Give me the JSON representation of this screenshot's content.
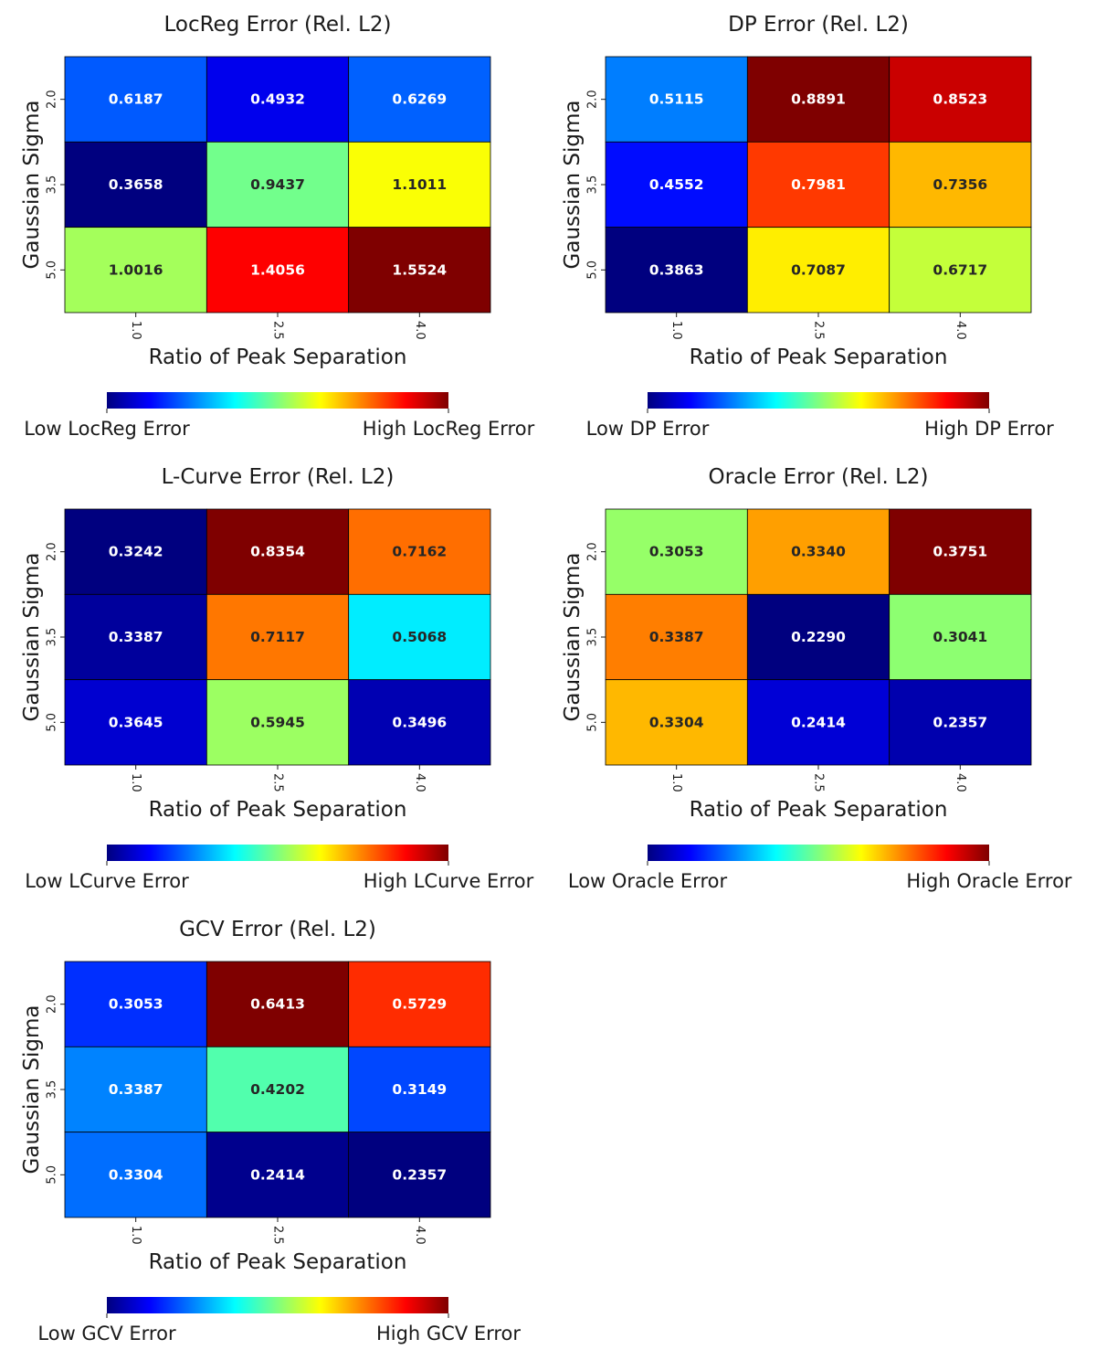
{
  "colormap": [
    "#00007f",
    "#0000ff",
    "#007fff",
    "#00ffff",
    "#7fff7f",
    "#ffff00",
    "#ff7f00",
    "#ff0000",
    "#7f0000"
  ],
  "chart_data": [
    {
      "type": "heatmap",
      "title": "LocReg Error (Rel. L2)",
      "xlabel": "Ratio of Peak Separation",
      "ylabel": "Gaussian Sigma",
      "x_categories": [
        "1.0",
        "2.5",
        "4.0"
      ],
      "y_categories": [
        "2.0",
        "3.5",
        "5.0"
      ],
      "values": [
        [
          0.6187,
          0.4932,
          0.6269
        ],
        [
          0.3658,
          0.9437,
          1.1011
        ],
        [
          1.0016,
          1.4056,
          1.5524
        ]
      ],
      "value_labels": [
        [
          "0.6187",
          "0.4932",
          "0.6269"
        ],
        [
          "0.3658",
          "0.9437",
          "1.1011"
        ],
        [
          "1.0016",
          "1.4056",
          "1.5524"
        ]
      ],
      "colorbar": {
        "low_label": "Low LocReg Error",
        "high_label": "High LocReg Error",
        "orientation": "horizontal"
      }
    },
    {
      "type": "heatmap",
      "title": "DP Error (Rel. L2)",
      "xlabel": "Ratio of Peak Separation",
      "ylabel": "Gaussian Sigma",
      "x_categories": [
        "1.0",
        "2.5",
        "4.0"
      ],
      "y_categories": [
        "2.0",
        "3.5",
        "5.0"
      ],
      "values": [
        [
          0.5115,
          0.8891,
          0.8523
        ],
        [
          0.4552,
          0.7981,
          0.7356
        ],
        [
          0.3863,
          0.7087,
          0.6717
        ]
      ],
      "value_labels": [
        [
          "0.5115",
          "0.8891",
          "0.8523"
        ],
        [
          "0.4552",
          "0.7981",
          "0.7356"
        ],
        [
          "0.3863",
          "0.7087",
          "0.6717"
        ]
      ],
      "colorbar": {
        "low_label": "Low DP Error",
        "high_label": "High DP Error",
        "orientation": "horizontal"
      }
    },
    {
      "type": "heatmap",
      "title": "L-Curve Error (Rel. L2)",
      "xlabel": "Ratio of Peak Separation",
      "ylabel": "Gaussian Sigma",
      "x_categories": [
        "1.0",
        "2.5",
        "4.0"
      ],
      "y_categories": [
        "2.0",
        "3.5",
        "5.0"
      ],
      "values": [
        [
          0.3242,
          0.8354,
          0.7162
        ],
        [
          0.3387,
          0.7117,
          0.5068
        ],
        [
          0.3645,
          0.5945,
          0.3496
        ]
      ],
      "value_labels": [
        [
          "0.3242",
          "0.8354",
          "0.7162"
        ],
        [
          "0.3387",
          "0.7117",
          "0.5068"
        ],
        [
          "0.3645",
          "0.5945",
          "0.3496"
        ]
      ],
      "colorbar": {
        "low_label": "Low LCurve Error",
        "high_label": "High LCurve Error",
        "orientation": "horizontal"
      }
    },
    {
      "type": "heatmap",
      "title": "Oracle Error (Rel. L2)",
      "xlabel": "Ratio of Peak Separation",
      "ylabel": "Gaussian Sigma",
      "x_categories": [
        "1.0",
        "2.5",
        "4.0"
      ],
      "y_categories": [
        "2.0",
        "3.5",
        "5.0"
      ],
      "values": [
        [
          0.3053,
          0.334,
          0.3751
        ],
        [
          0.3387,
          0.229,
          0.3041
        ],
        [
          0.3304,
          0.2414,
          0.2357
        ]
      ],
      "value_labels": [
        [
          "0.3053",
          "0.3340",
          "0.3751"
        ],
        [
          "0.3387",
          "0.2290",
          "0.3041"
        ],
        [
          "0.3304",
          "0.2414",
          "0.2357"
        ]
      ],
      "colorbar": {
        "low_label": "Low Oracle Error",
        "high_label": "High Oracle Error",
        "orientation": "horizontal"
      }
    },
    {
      "type": "heatmap",
      "title": "GCV Error (Rel. L2)",
      "xlabel": "Ratio of Peak Separation",
      "ylabel": "Gaussian Sigma",
      "x_categories": [
        "1.0",
        "2.5",
        "4.0"
      ],
      "y_categories": [
        "2.0",
        "3.5",
        "5.0"
      ],
      "values": [
        [
          0.3053,
          0.6413,
          0.5729
        ],
        [
          0.3387,
          0.4202,
          0.3149
        ],
        [
          0.3304,
          0.2414,
          0.2357
        ]
      ],
      "value_labels": [
        [
          "0.3053",
          "0.6413",
          "0.5729"
        ],
        [
          "0.3387",
          "0.4202",
          "0.3149"
        ],
        [
          "0.3304",
          "0.2414",
          "0.2357"
        ]
      ],
      "colorbar": {
        "low_label": "Low GCV Error",
        "high_label": "High GCV Error",
        "orientation": "horizontal"
      }
    }
  ]
}
